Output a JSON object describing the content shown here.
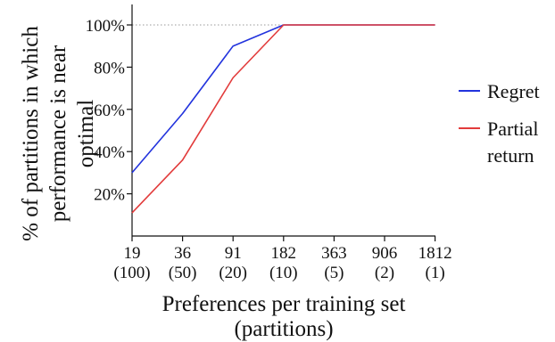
{
  "chart_data": {
    "type": "line",
    "categories": [
      "19",
      "36",
      "91",
      "182",
      "363",
      "906",
      "1812"
    ],
    "category_sublabels": [
      "(100)",
      "(50)",
      "(20)",
      "(10)",
      "(5)",
      "(2)",
      "(1)"
    ],
    "xlabel": [
      "Preferences per training set",
      "(partitions)"
    ],
    "ylabel": [
      "% of partitions in which",
      "performance is near",
      "optimal"
    ],
    "yticks": [
      "20%",
      "40%",
      "60%",
      "80%",
      "100%"
    ],
    "ytick_values": [
      20,
      40,
      60,
      80,
      100
    ],
    "ylim": [
      0,
      105
    ],
    "reference_line": 100,
    "series": [
      {
        "name": "Regret",
        "legend_lines": [
          "Regret"
        ],
        "color": "#2233dd",
        "values": [
          30,
          58,
          90,
          100,
          100,
          100,
          100
        ]
      },
      {
        "name": "Partial return",
        "legend_lines": [
          "Partial",
          "return"
        ],
        "color": "#e23b3b",
        "values": [
          11,
          36,
          75,
          100,
          100,
          100,
          100
        ]
      }
    ],
    "legend_position": "right",
    "grid": false
  }
}
